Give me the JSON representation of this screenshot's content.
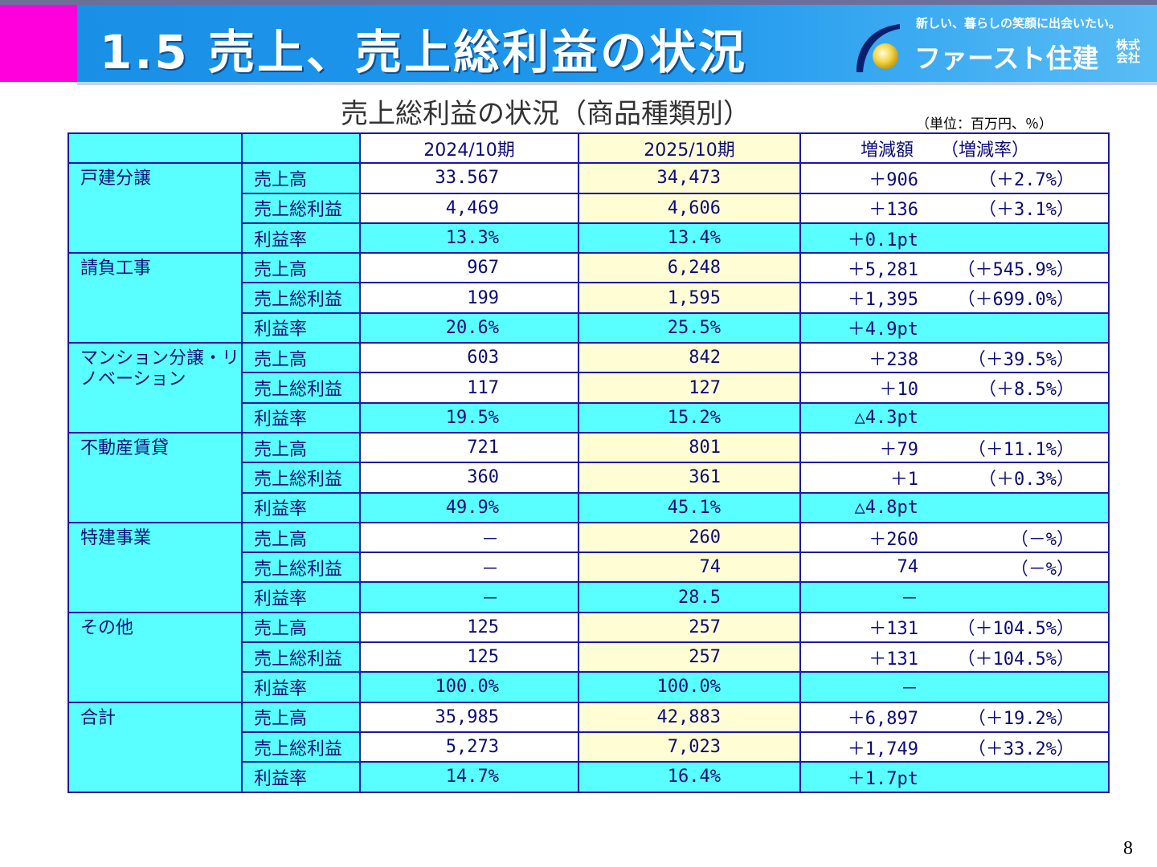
{
  "header": {
    "title": "1.5 売上、売上総利益の状況",
    "logo_tagline": "新しい、暮らしの笑顔に出会いたい。",
    "logo_name": "ファースト住建",
    "logo_corp_line1": "株式",
    "logo_corp_line2": "会社",
    "accent_color": "#1a8fe6",
    "marker_color": "#ff00dd"
  },
  "subtitle": "売上総利益の状況（商品種類別）",
  "unit_note": "（単位：百万円、％）",
  "table": {
    "col_headers": [
      "2024/10期",
      "2025/10期",
      "増減額",
      "（増減率）"
    ],
    "groups": [
      {
        "category": "戸建分譲",
        "rows": [
          {
            "item": "売上高",
            "prev": "33.567",
            "curr": "34,473",
            "change": "＋906",
            "pct": "（＋2.7%）"
          },
          {
            "item": "売上総利益",
            "prev": "4,469",
            "curr": "4,606",
            "change": "＋136",
            "pct": "（＋3.1%）"
          },
          {
            "item": "利益率",
            "prev": "13.3%",
            "curr": "13.4%",
            "change": "＋0.1pt",
            "pct": ""
          }
        ]
      },
      {
        "category": "請負工事",
        "rows": [
          {
            "item": "売上高",
            "prev": "967",
            "curr": "6,248",
            "change": "＋5,281",
            "pct": "（＋545.9%）"
          },
          {
            "item": "売上総利益",
            "prev": "199",
            "curr": "1,595",
            "change": "＋1,395",
            "pct": "（＋699.0%）"
          },
          {
            "item": "利益率",
            "prev": "20.6%",
            "curr": "25.5%",
            "change": "＋4.9pt",
            "pct": ""
          }
        ]
      },
      {
        "category": "マンション分譲・リノベーション",
        "rows": [
          {
            "item": "売上高",
            "prev": "603",
            "curr": "842",
            "change": "＋238",
            "pct": "（＋39.5%）"
          },
          {
            "item": "売上総利益",
            "prev": "117",
            "curr": "127",
            "change": "＋10",
            "pct": "（＋8.5%）"
          },
          {
            "item": "利益率",
            "prev": "19.5%",
            "curr": "15.2%",
            "change": "△4.3pt",
            "pct": ""
          }
        ]
      },
      {
        "category": "不動産賃貸",
        "rows": [
          {
            "item": "売上高",
            "prev": "721",
            "curr": "801",
            "change": "＋79",
            "pct": "（＋11.1%）"
          },
          {
            "item": "売上総利益",
            "prev": "360",
            "curr": "361",
            "change": "＋1",
            "pct": "（＋0.3%）"
          },
          {
            "item": "利益率",
            "prev": "49.9%",
            "curr": "45.1%",
            "change": "△4.8pt",
            "pct": ""
          }
        ]
      },
      {
        "category": "特建事業",
        "rows": [
          {
            "item": "売上高",
            "prev": "－",
            "curr": "260",
            "change": "＋260",
            "pct": "（－%）"
          },
          {
            "item": "売上総利益",
            "prev": "－",
            "curr": "74",
            "change": "74",
            "pct": "（－%）"
          },
          {
            "item": "利益率",
            "prev": "－",
            "curr": "28.5",
            "change": "－",
            "pct": ""
          }
        ]
      },
      {
        "category": "その他",
        "rows": [
          {
            "item": "売上高",
            "prev": "125",
            "curr": "257",
            "change": "＋131",
            "pct": "（＋104.5%）"
          },
          {
            "item": "売上総利益",
            "prev": "125",
            "curr": "257",
            "change": "＋131",
            "pct": "（＋104.5%）"
          },
          {
            "item": "利益率",
            "prev": "100.0%",
            "curr": "100.0%",
            "change": "－",
            "pct": ""
          }
        ]
      },
      {
        "category": "合計",
        "rows": [
          {
            "item": "売上高",
            "prev": "35,985",
            "curr": "42,883",
            "change": "＋6,897",
            "pct": "（＋19.2%）"
          },
          {
            "item": "売上総利益",
            "prev": "5,273",
            "curr": "7,023",
            "change": "＋1,749",
            "pct": "（＋33.2%）"
          },
          {
            "item": "利益率",
            "prev": "14.7%",
            "curr": "16.4%",
            "change": "＋1.7pt",
            "pct": ""
          }
        ]
      }
    ]
  },
  "page_number": "8",
  "colors": {
    "cyan_cell": "#59ffff",
    "highlight_column": "#fffdd4",
    "border": "#1818a8"
  }
}
